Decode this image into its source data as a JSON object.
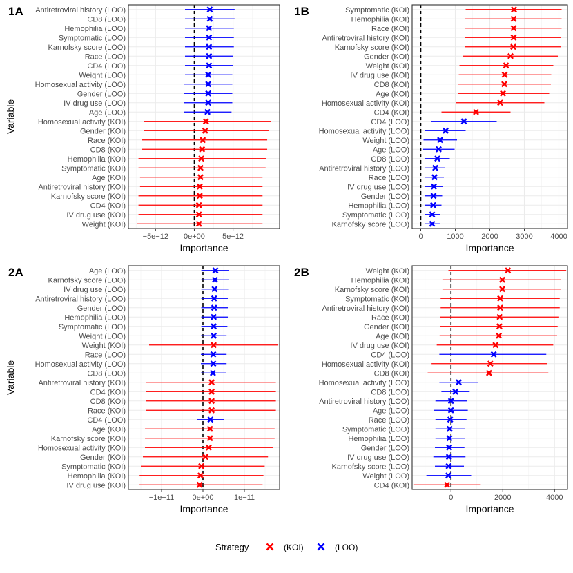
{
  "colors": {
    "KOI": "#ff0000",
    "LOO": "#0000ff",
    "grid_major": "#ebebeb",
    "grid_minor": "#f5f5f5",
    "zero_line": "#000000"
  },
  "legend": {
    "title": "Strategy",
    "items": [
      {
        "strategy": "KOI",
        "label": "(KOI)"
      },
      {
        "strategy": "LOO",
        "label": "(LOO)"
      }
    ]
  },
  "chart_data": [
    {
      "panel": "1A",
      "type": "dot-errorbar",
      "xlabel": "Importance",
      "ylabel": "Variable",
      "xlim": [
        -8.5e-12,
        1.1e-11
      ],
      "xticks": [
        {
          "value": -5e-12,
          "label": "−5e−12"
        },
        {
          "value": 0,
          "label": "0e+00"
        },
        {
          "value": 5e-12,
          "label": "5e−12"
        }
      ],
      "rows": [
        {
          "label": "Antiretroviral history (LOO)",
          "strategy": "LOO",
          "est": 2e-12,
          "lo": -1.2e-12,
          "hi": 5.2e-12
        },
        {
          "label": "CD8 (LOO)",
          "strategy": "LOO",
          "est": 2e-12,
          "lo": -1.2e-12,
          "hi": 5.2e-12
        },
        {
          "label": "Hemophilia (LOO)",
          "strategy": "LOO",
          "est": 1.9e-12,
          "lo": -1.2e-12,
          "hi": 5.1e-12
        },
        {
          "label": "Symptomatic (LOO)",
          "strategy": "LOO",
          "est": 1.9e-12,
          "lo": -1.2e-12,
          "hi": 5.1e-12
        },
        {
          "label": "Karnofsky score (LOO)",
          "strategy": "LOO",
          "est": 1.9e-12,
          "lo": -1.2e-12,
          "hi": 5.1e-12
        },
        {
          "label": "Race (LOO)",
          "strategy": "LOO",
          "est": 1.9e-12,
          "lo": -1.2e-12,
          "hi": 5e-12
        },
        {
          "label": "CD4 (LOO)",
          "strategy": "LOO",
          "est": 1.9e-12,
          "lo": -1.2e-12,
          "hi": 5e-12
        },
        {
          "label": "Weight (LOO)",
          "strategy": "LOO",
          "est": 1.8e-12,
          "lo": -1.2e-12,
          "hi": 4.9e-12
        },
        {
          "label": "Homosexual activity (LOO)",
          "strategy": "LOO",
          "est": 1.8e-12,
          "lo": -1.3e-12,
          "hi": 4.9e-12
        },
        {
          "label": "Gender (LOO)",
          "strategy": "LOO",
          "est": 1.8e-12,
          "lo": -1.3e-12,
          "hi": 4.9e-12
        },
        {
          "label": "IV drug use (LOO)",
          "strategy": "LOO",
          "est": 1.8e-12,
          "lo": -1.3e-12,
          "hi": 4.9e-12
        },
        {
          "label": "Age (LOO)",
          "strategy": "LOO",
          "est": 1.7e-12,
          "lo": -1.3e-12,
          "hi": 4.8e-12
        },
        {
          "label": "Homosexual activity (KOI)",
          "strategy": "KOI",
          "est": 1.5e-12,
          "lo": -6.5e-12,
          "hi": 9.9e-12
        },
        {
          "label": "Gender (KOI)",
          "strategy": "KOI",
          "est": 1.4e-12,
          "lo": -6.5e-12,
          "hi": 9.6e-12
        },
        {
          "label": "Race (KOI)",
          "strategy": "KOI",
          "est": 1.1e-12,
          "lo": -6.8e-12,
          "hi": 9.4e-12
        },
        {
          "label": "CD8 (KOI)",
          "strategy": "KOI",
          "est": 1e-12,
          "lo": -6.8e-12,
          "hi": 9.4e-12
        },
        {
          "label": "Hemophilia (KOI)",
          "strategy": "KOI",
          "est": 9e-13,
          "lo": -7.2e-12,
          "hi": 9.3e-12
        },
        {
          "label": "Symptomatic (KOI)",
          "strategy": "KOI",
          "est": 8e-13,
          "lo": -7.2e-12,
          "hi": 9.2e-12
        },
        {
          "label": "Age (KOI)",
          "strategy": "KOI",
          "est": 8e-13,
          "lo": -7e-12,
          "hi": 8.8e-12
        },
        {
          "label": "Antiretroviral history (KOI)",
          "strategy": "KOI",
          "est": 7e-13,
          "lo": -7e-12,
          "hi": 8.8e-12
        },
        {
          "label": "Karnofsky score (KOI)",
          "strategy": "KOI",
          "est": 7e-13,
          "lo": -7.2e-12,
          "hi": 8.8e-12
        },
        {
          "label": "CD4 (KOI)",
          "strategy": "KOI",
          "est": 6e-13,
          "lo": -7.2e-12,
          "hi": 8.8e-12
        },
        {
          "label": "IV drug use (KOI)",
          "strategy": "KOI",
          "est": 6e-13,
          "lo": -7.2e-12,
          "hi": 8.8e-12
        },
        {
          "label": "Weight (KOI)",
          "strategy": "KOI",
          "est": 6e-13,
          "lo": -7.4e-12,
          "hi": 8.8e-12
        }
      ]
    },
    {
      "panel": "1B",
      "type": "dot-errorbar",
      "xlabel": "Importance",
      "ylabel": "",
      "xlim": [
        -250,
        4250
      ],
      "xticks": [
        {
          "value": 0,
          "label": "0"
        },
        {
          "value": 1000,
          "label": "1000"
        },
        {
          "value": 2000,
          "label": "2000"
        },
        {
          "value": 3000,
          "label": "3000"
        },
        {
          "value": 4000,
          "label": "4000"
        }
      ],
      "rows": [
        {
          "label": "Symptomatic (KOI)",
          "strategy": "KOI",
          "est": 2700,
          "lo": 1300,
          "hi": 4080
        },
        {
          "label": "Hemophilia (KOI)",
          "strategy": "KOI",
          "est": 2690,
          "lo": 1290,
          "hi": 4080
        },
        {
          "label": "Race (KOI)",
          "strategy": "KOI",
          "est": 2690,
          "lo": 1290,
          "hi": 4080
        },
        {
          "label": "Antiretroviral history (KOI)",
          "strategy": "KOI",
          "est": 2690,
          "lo": 1290,
          "hi": 4070
        },
        {
          "label": "Karnofsky score (KOI)",
          "strategy": "KOI",
          "est": 2680,
          "lo": 1290,
          "hi": 4060
        },
        {
          "label": "Gender (KOI)",
          "strategy": "KOI",
          "est": 2600,
          "lo": 1220,
          "hi": 3970
        },
        {
          "label": "Weight (KOI)",
          "strategy": "KOI",
          "est": 2470,
          "lo": 1120,
          "hi": 3840
        },
        {
          "label": "IV drug use (KOI)",
          "strategy": "KOI",
          "est": 2430,
          "lo": 1100,
          "hi": 3780
        },
        {
          "label": "CD8 (KOI)",
          "strategy": "KOI",
          "est": 2420,
          "lo": 1090,
          "hi": 3770
        },
        {
          "label": "Age (KOI)",
          "strategy": "KOI",
          "est": 2380,
          "lo": 1070,
          "hi": 3720
        },
        {
          "label": "Homosexual activity (KOI)",
          "strategy": "KOI",
          "est": 2300,
          "lo": 1020,
          "hi": 3580
        },
        {
          "label": "CD4 (KOI)",
          "strategy": "KOI",
          "est": 1600,
          "lo": 600,
          "hi": 2600
        },
        {
          "label": "CD4 (LOO)",
          "strategy": "LOO",
          "est": 1250,
          "lo": 310,
          "hi": 2200
        },
        {
          "label": "Homosexual activity (LOO)",
          "strategy": "LOO",
          "est": 720,
          "lo": 120,
          "hi": 1300
        },
        {
          "label": "Weight (LOO)",
          "strategy": "LOO",
          "est": 560,
          "lo": 80,
          "hi": 1050
        },
        {
          "label": "Age (LOO)",
          "strategy": "LOO",
          "est": 520,
          "lo": 60,
          "hi": 980
        },
        {
          "label": "CD8 (LOO)",
          "strategy": "LOO",
          "est": 480,
          "lo": 120,
          "hi": 840
        },
        {
          "label": "Antiretroviral history (LOO)",
          "strategy": "LOO",
          "est": 420,
          "lo": 130,
          "hi": 710
        },
        {
          "label": "Race (LOO)",
          "strategy": "LOO",
          "est": 400,
          "lo": 130,
          "hi": 670
        },
        {
          "label": "IV drug use (LOO)",
          "strategy": "LOO",
          "est": 380,
          "lo": 120,
          "hi": 640
        },
        {
          "label": "Gender (LOO)",
          "strategy": "LOO",
          "est": 370,
          "lo": 120,
          "hi": 620
        },
        {
          "label": "Hemophilia (LOO)",
          "strategy": "LOO",
          "est": 360,
          "lo": 120,
          "hi": 600
        },
        {
          "label": "Symptomatic (LOO)",
          "strategy": "LOO",
          "est": 330,
          "lo": 110,
          "hi": 550
        },
        {
          "label": "Karnofsky score (LOO)",
          "strategy": "LOO",
          "est": 330,
          "lo": 110,
          "hi": 550
        }
      ]
    },
    {
      "panel": "2A",
      "type": "dot-errorbar",
      "xlabel": "Importance",
      "ylabel": "Variable",
      "xlim": [
        -1.8e-11,
        1.85e-11
      ],
      "xticks": [
        {
          "value": -1e-11,
          "label": "−1e−11"
        },
        {
          "value": 0,
          "label": "0e+00"
        },
        {
          "value": 1e-11,
          "label": "1e−11"
        }
      ],
      "rows": [
        {
          "label": "Age (LOO)",
          "strategy": "LOO",
          "est": 3e-12,
          "lo": -4e-13,
          "hi": 6.3e-12
        },
        {
          "label": "Karnofsky score (LOO)",
          "strategy": "LOO",
          "est": 2.9e-12,
          "lo": -4e-13,
          "hi": 6.2e-12
        },
        {
          "label": "IV drug use (LOO)",
          "strategy": "LOO",
          "est": 2.8e-12,
          "lo": -4e-13,
          "hi": 6.1e-12
        },
        {
          "label": "Antiretroviral history (LOO)",
          "strategy": "LOO",
          "est": 2.7e-12,
          "lo": -4e-13,
          "hi": 6e-12
        },
        {
          "label": "Gender (LOO)",
          "strategy": "LOO",
          "est": 2.7e-12,
          "lo": -4e-13,
          "hi": 6e-12
        },
        {
          "label": "Hemophilia (LOO)",
          "strategy": "LOO",
          "est": 2.6e-12,
          "lo": -4e-13,
          "hi": 6e-12
        },
        {
          "label": "Symptomatic (LOO)",
          "strategy": "LOO",
          "est": 2.6e-12,
          "lo": -4e-13,
          "hi": 5.9e-12
        },
        {
          "label": "Weight (LOO)",
          "strategy": "LOO",
          "est": 2.6e-12,
          "lo": -5e-13,
          "hi": 5.7e-12
        },
        {
          "label": "Weight (KOI)",
          "strategy": "KOI",
          "est": 2.6e-12,
          "lo": -1.3e-11,
          "hi": 1.8e-11
        },
        {
          "label": "Race (LOO)",
          "strategy": "LOO",
          "est": 2.5e-12,
          "lo": -5e-13,
          "hi": 5.7e-12
        },
        {
          "label": "Homosexual activity (LOO)",
          "strategy": "LOO",
          "est": 2.5e-12,
          "lo": -5e-13,
          "hi": 5.7e-12
        },
        {
          "label": "CD8 (LOO)",
          "strategy": "LOO",
          "est": 2.4e-12,
          "lo": -5e-13,
          "hi": 5.6e-12
        },
        {
          "label": "Antiretroviral history (KOI)",
          "strategy": "KOI",
          "est": 2.1e-12,
          "lo": -1.38e-11,
          "hi": 1.76e-11
        },
        {
          "label": "CD4 (KOI)",
          "strategy": "KOI",
          "est": 2.1e-12,
          "lo": -1.38e-11,
          "hi": 1.76e-11
        },
        {
          "label": "CD8 (KOI)",
          "strategy": "KOI",
          "est": 2.1e-12,
          "lo": -1.38e-11,
          "hi": 1.76e-11
        },
        {
          "label": "Race (KOI)",
          "strategy": "KOI",
          "est": 2.1e-12,
          "lo": -1.38e-11,
          "hi": 1.76e-11
        },
        {
          "label": "CD4 (LOO)",
          "strategy": "LOO",
          "est": 1.8e-12,
          "lo": -1.4e-12,
          "hi": 5.1e-12
        },
        {
          "label": "Age (KOI)",
          "strategy": "KOI",
          "est": 1.7e-12,
          "lo": -1.4e-11,
          "hi": 1.73e-11
        },
        {
          "label": "Karnofsky score (KOI)",
          "strategy": "KOI",
          "est": 1.7e-12,
          "lo": -1.4e-11,
          "hi": 1.73e-11
        },
        {
          "label": "Homosexual activity (KOI)",
          "strategy": "KOI",
          "est": 1.4e-12,
          "lo": -1.4e-11,
          "hi": 1.69e-11
        },
        {
          "label": "Gender (KOI)",
          "strategy": "KOI",
          "est": 6e-13,
          "lo": -1.45e-11,
          "hi": 1.57e-11
        },
        {
          "label": "Symptomatic (KOI)",
          "strategy": "KOI",
          "est": -4e-13,
          "lo": -1.5e-11,
          "hi": 1.49e-11
        },
        {
          "label": "Hemophilia (KOI)",
          "strategy": "KOI",
          "est": -6e-13,
          "lo": -1.53e-11,
          "hi": 1.46e-11
        },
        {
          "label": "IV drug use (KOI)",
          "strategy": "KOI",
          "est": -8e-13,
          "lo": -1.55e-11,
          "hi": 1.44e-11
        }
      ]
    },
    {
      "panel": "2B",
      "type": "dot-errorbar",
      "xlabel": "Importance",
      "ylabel": "",
      "xlim": [
        -1500,
        4500
      ],
      "xticks": [
        {
          "value": 0,
          "label": "0"
        },
        {
          "value": 2000,
          "label": "2000"
        },
        {
          "value": 4000,
          "label": "4000"
        }
      ],
      "rows": [
        {
          "label": "Weight (KOI)",
          "strategy": "KOI",
          "est": 2200,
          "lo": -100,
          "hi": 4450
        },
        {
          "label": "Hemophilia (KOI)",
          "strategy": "KOI",
          "est": 1980,
          "lo": -330,
          "hi": 4250
        },
        {
          "label": "Karnofsky score (KOI)",
          "strategy": "KOI",
          "est": 1980,
          "lo": -330,
          "hi": 4250
        },
        {
          "label": "Symptomatic (KOI)",
          "strategy": "KOI",
          "est": 1900,
          "lo": -400,
          "hi": 4200
        },
        {
          "label": "Antiretroviral history (KOI)",
          "strategy": "KOI",
          "est": 1900,
          "lo": -400,
          "hi": 4200
        },
        {
          "label": "Race (KOI)",
          "strategy": "KOI",
          "est": 1880,
          "lo": -420,
          "hi": 4150
        },
        {
          "label": "Gender (KOI)",
          "strategy": "KOI",
          "est": 1870,
          "lo": -430,
          "hi": 4120
        },
        {
          "label": "Age (KOI)",
          "strategy": "KOI",
          "est": 1850,
          "lo": -440,
          "hi": 4100
        },
        {
          "label": "IV drug use (KOI)",
          "strategy": "KOI",
          "est": 1720,
          "lo": -550,
          "hi": 3950
        },
        {
          "label": "CD4 (LOO)",
          "strategy": "LOO",
          "est": 1650,
          "lo": -450,
          "hi": 3680
        },
        {
          "label": "Homosexual activity (KOI)",
          "strategy": "KOI",
          "est": 1520,
          "lo": -750,
          "hi": 3720
        },
        {
          "label": "CD8 (KOI)",
          "strategy": "KOI",
          "est": 1470,
          "lo": -900,
          "hi": 3760
        },
        {
          "label": "Homosexual activity (LOO)",
          "strategy": "LOO",
          "est": 300,
          "lo": -450,
          "hi": 1050
        },
        {
          "label": "CD8 (LOO)",
          "strategy": "LOO",
          "est": 170,
          "lo": -370,
          "hi": 720
        },
        {
          "label": "Antiretroviral history (LOO)",
          "strategy": "LOO",
          "est": 0,
          "lo": -600,
          "hi": 620
        },
        {
          "label": "Age (LOO)",
          "strategy": "LOO",
          "est": 0,
          "lo": -650,
          "hi": 650
        },
        {
          "label": "Race (LOO)",
          "strategy": "LOO",
          "est": -30,
          "lo": -600,
          "hi": 600
        },
        {
          "label": "Symptomatic (LOO)",
          "strategy": "LOO",
          "est": -50,
          "lo": -600,
          "hi": 550
        },
        {
          "label": "Hemophilia (LOO)",
          "strategy": "LOO",
          "est": -60,
          "lo": -600,
          "hi": 530
        },
        {
          "label": "Gender (LOO)",
          "strategy": "LOO",
          "est": -70,
          "lo": -620,
          "hi": 520
        },
        {
          "label": "IV drug use (LOO)",
          "strategy": "LOO",
          "est": -80,
          "lo": -680,
          "hi": 560
        },
        {
          "label": "Karnofsky score (LOO)",
          "strategy": "LOO",
          "est": -90,
          "lo": -620,
          "hi": 500
        },
        {
          "label": "Weight (LOO)",
          "strategy": "LOO",
          "est": -100,
          "lo": -950,
          "hi": 780
        },
        {
          "label": "CD4 (KOI)",
          "strategy": "KOI",
          "est": -150,
          "lo": -1450,
          "hi": 1150
        }
      ]
    }
  ]
}
